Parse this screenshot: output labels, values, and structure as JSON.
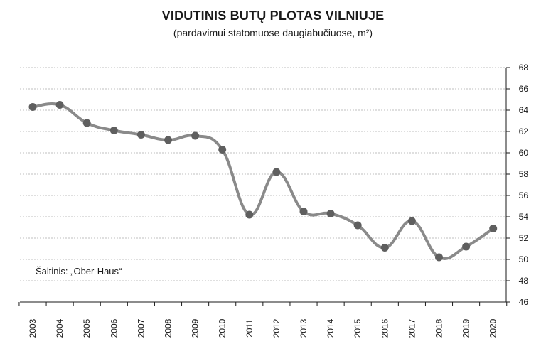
{
  "chart_data": {
    "type": "line",
    "title": "VIDUTINIS BUTŲ PLOTAS VILNIUJE",
    "subtitle": "(pardavimui statomuose daugiabučiuose, m²)",
    "categories": [
      "2003",
      "2004",
      "2005",
      "2006",
      "2007",
      "2008",
      "2009",
      "2010",
      "2011",
      "2012",
      "2013",
      "2014",
      "2015",
      "2016",
      "2017",
      "2018",
      "2019",
      "2020"
    ],
    "series": [
      {
        "values": [
          64.3,
          64.5,
          62.8,
          62.1,
          61.7,
          61.2,
          61.6,
          60.3,
          54.2,
          58.2,
          54.5,
          54.3,
          53.2,
          51.1,
          53.6,
          50.2,
          51.2,
          52.9
        ]
      }
    ],
    "ylim": [
      46,
      68
    ],
    "yticks": [
      "46",
      "48",
      "50",
      "52",
      "54",
      "56",
      "58",
      "60",
      "62",
      "64",
      "66",
      "68"
    ],
    "y_axis_position": "right",
    "grid": true,
    "source": "Šaltinis: „Ober-Haus“",
    "colors": {
      "line": "#8a8a8a",
      "marker": "#5f5f5f",
      "grid": "#aaaaaa",
      "axis": "#1a1a1a"
    }
  }
}
